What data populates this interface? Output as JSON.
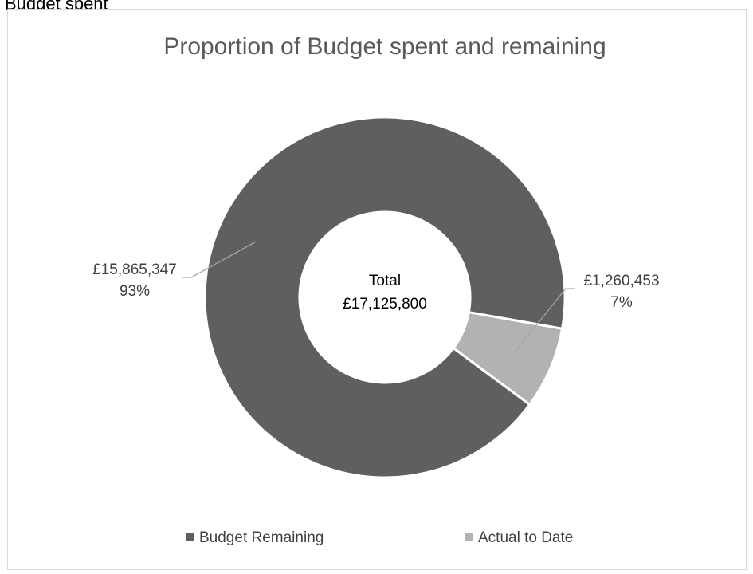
{
  "page": {
    "heading_fragment": "Budget spent"
  },
  "chart_data": {
    "type": "pie",
    "variant": "doughnut",
    "title": "Proportion of Budget spent and remaining",
    "center_label": {
      "line1": "Total",
      "line2": "£17,125,800"
    },
    "slices": [
      {
        "name": "Budget Remaining",
        "value": 15865347,
        "value_label": "£15,865,347",
        "percent_label": "93%",
        "color": "#5f5f5f"
      },
      {
        "name": "Actual to Date",
        "value": 1260453,
        "value_label": "£1,260,453",
        "percent_label": "7%",
        "color": "#b2b2b2"
      }
    ],
    "legend": {
      "position": "bottom"
    },
    "colors": {
      "leader_line": "#a6a6a6",
      "text": "#404040",
      "separator": "#ffffff"
    }
  }
}
